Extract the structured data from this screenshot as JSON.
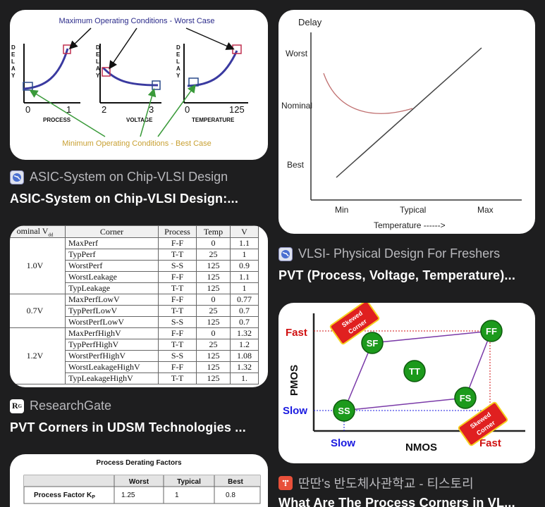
{
  "results": [
    {
      "source": "ASIC-System on Chip-VLSI Design",
      "title": "ASIC-System on Chip-VLSI Design:...",
      "image": {
        "top_label": "Maximum Operating Conditions - Worst Case",
        "bottom_label": "Minimum Operating Conditions - Best Case",
        "delay_letters": [
          "D",
          "E",
          "L",
          "A",
          "Y"
        ],
        "graphs": [
          {
            "x_min": "0",
            "x_max": "1",
            "x_label": "PROCESS"
          },
          {
            "x_min": "2",
            "x_max": "3",
            "x_label": "VOLTAGE"
          },
          {
            "x_min": "0",
            "x_max": "125",
            "x_label": "TEMPERATURE"
          }
        ]
      }
    },
    {
      "source": "VLSI- Physical Design For Freshers",
      "title": "PVT (Process, Voltage, Temperature)...",
      "image": {
        "y_label": "Delay",
        "y_ticks": [
          "Worst",
          "Nominal",
          "Best"
        ],
        "x_ticks": [
          "Min",
          "Typical",
          "Max"
        ],
        "x_label": "Temperature ------>"
      }
    },
    {
      "source": "ResearchGate",
      "title": "PVT Corners in UDSM Technologies ...",
      "table": {
        "headers": [
          "ominal V",
          "Corner",
          "Process",
          "Temp",
          "V"
        ],
        "header_sub": "dd",
        "groups": [
          {
            "voltage": "1.0V",
            "rows": [
              [
                "MaxPerf",
                "F-F",
                "0",
                "1.1"
              ],
              [
                "TypPerf",
                "T-T",
                "25",
                "1"
              ],
              [
                "WorstPerf",
                "S-S",
                "125",
                "0.9"
              ],
              [
                "WorstLeakage",
                "F-F",
                "125",
                "1.1"
              ],
              [
                "TypLeakage",
                "T-T",
                "125",
                "1"
              ]
            ]
          },
          {
            "voltage": "0.7V",
            "rows": [
              [
                "MaxPerfLowV",
                "F-F",
                "0",
                "0.77"
              ],
              [
                "TypPerfLowV",
                "T-T",
                "25",
                "0.7"
              ],
              [
                "WorstPerfLowV",
                "S-S",
                "125",
                "0.7"
              ]
            ]
          },
          {
            "voltage": "1.2V",
            "rows": [
              [
                "MaxPerfHighV",
                "F-F",
                "0",
                "1.32"
              ],
              [
                "TypPerfHighV",
                "T-T",
                "25",
                "1.2"
              ],
              [
                "WorstPerfHighV",
                "S-S",
                "125",
                "1.08"
              ],
              [
                "WorstLeakageHighV",
                "F-F",
                "125",
                "1.32"
              ],
              [
                "TypLeakageHighV",
                "T-T",
                "125",
                "1."
              ]
            ]
          }
        ]
      }
    },
    {
      "source": "딴딴's 반도체사관학교 - 티스토리",
      "title": "What Are The Process Corners in VL...",
      "image": {
        "y_label": "PMOS",
        "x_label": "NMOS",
        "y_fast": "Fast",
        "y_slow": "Slow",
        "x_slow": "Slow",
        "x_fast": "Fast",
        "corners": [
          "SF",
          "FF",
          "TT",
          "FS",
          "SS"
        ],
        "skew_label_line1": "Skewed",
        "skew_label_line2": "Corner"
      }
    },
    {
      "image": {
        "title": "Process Derating Factors",
        "headers": [
          "",
          "Worst",
          "Typical",
          "Best"
        ],
        "row_label": "Process Factor K",
        "row_sub": "P",
        "row_values": [
          "1.25",
          "1",
          "0.8"
        ]
      }
    }
  ],
  "colors": {
    "background": "#1e1e1f",
    "curve_blue": "#3a3aa0",
    "arrow_green": "#3a9a3a",
    "label_orange": "#c8a032",
    "corner_green": "#1c9a1c",
    "skew_red": "#e02020",
    "skew_yellow": "#f5d020",
    "axis_red": "#d01010",
    "axis_blue": "#1a1ae0"
  }
}
